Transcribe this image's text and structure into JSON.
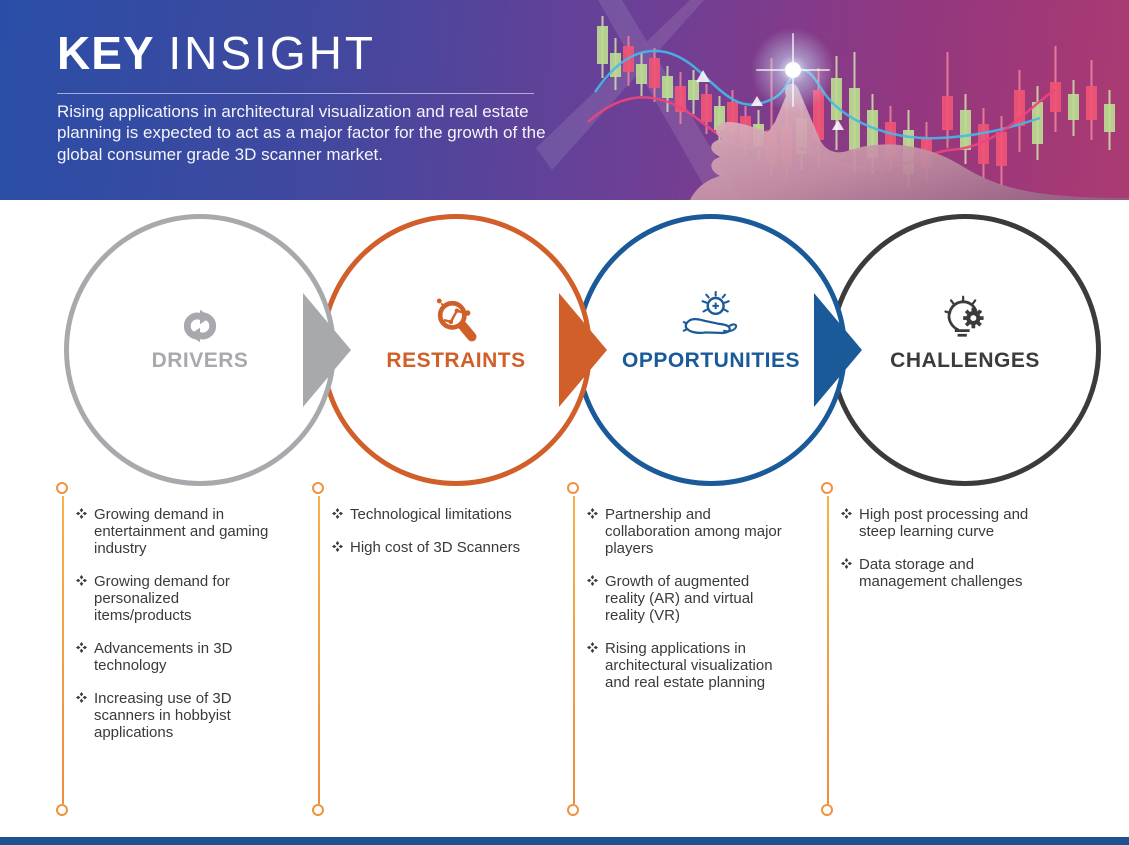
{
  "header": {
    "title_bold": "KEY",
    "title_regular": "INSIGHT",
    "subtitle": "Rising applications in architectural visualization and real estate planning is expected to act as a major factor for the growth of the global consumer grade 3D scanner market.",
    "colors": {
      "gradient_left": "#2a4ea7",
      "gradient_right": "#ab3a72"
    }
  },
  "sections": [
    {
      "label": "DRIVERS",
      "color": "#a7a9ac",
      "icon": "cycle-arrows-icon",
      "items": [
        "Growing demand in entertainment and gaming industry",
        "Growing demand for personalized items/products",
        "Advancements in 3D technology",
        "Increasing use of 3D scanners in hobbyist applications"
      ]
    },
    {
      "label": "RESTRAINTS",
      "color": "#d05f2a",
      "icon": "magnifier-chart-icon",
      "items": [
        "Technological limitations",
        "High cost of 3D Scanners"
      ]
    },
    {
      "label": "OPPORTUNITIES",
      "color": "#1b5a99",
      "icon": "hand-sun-icon",
      "items": [
        "Partnership and collaboration among major players",
        "Growth of augmented reality (AR) and virtual reality (VR)",
        "Rising applications in architectural visualization and real estate planning"
      ]
    },
    {
      "label": "CHALLENGES",
      "color": "#3b3b3d",
      "icon": "bulb-gear-icon",
      "items": [
        "High post processing and steep learning curve",
        "Data storage and management challenges"
      ]
    }
  ],
  "connector_color": "#f2a43c",
  "footer": {
    "bar_color": "#1d518f"
  }
}
